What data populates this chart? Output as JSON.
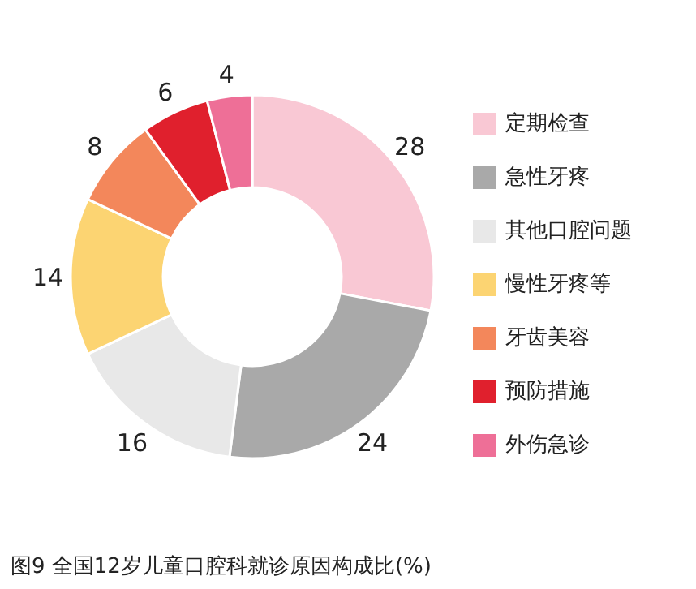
{
  "chart_data": {
    "type": "donut",
    "title": "图9 全国12岁儿童口腔科就诊原因构成比(%)",
    "categories": [
      "定期检查",
      "急性牙疼",
      "其他口腔问题",
      "慢性牙疼等",
      "牙齿美容",
      "预防措施",
      "外伤急诊"
    ],
    "values": [
      28,
      24,
      16,
      14,
      8,
      6,
      4
    ],
    "colors": [
      "#f9c8d4",
      "#a9a9a9",
      "#e8e8e8",
      "#fcd472",
      "#f3875b",
      "#e0202d",
      "#ee6f97"
    ],
    "data_labels": true,
    "legend": "right"
  }
}
